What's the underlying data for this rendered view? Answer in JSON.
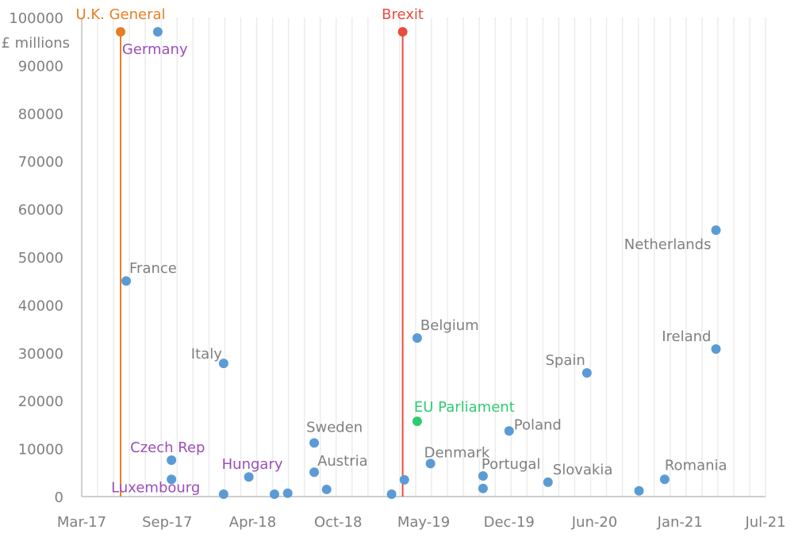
{
  "chart_data": {
    "type": "scatter",
    "title": "",
    "ylabel": "£ millions",
    "xlabel": "",
    "x_unit": "days since Mar-17",
    "xlim": [
      0,
      1600
    ],
    "ylim": [
      0,
      100000
    ],
    "yticks": [
      0,
      10000,
      20000,
      30000,
      40000,
      50000,
      60000,
      70000,
      80000,
      90000,
      100000
    ],
    "xticks": [
      {
        "value": 0,
        "label": "Mar-17"
      },
      {
        "value": 200,
        "label": "Sep-17"
      },
      {
        "value": 400,
        "label": "Apr-18"
      },
      {
        "value": 600,
        "label": "Oct-18"
      },
      {
        "value": 800,
        "label": "May-19"
      },
      {
        "value": 1000,
        "label": "Dec-19"
      },
      {
        "value": 1200,
        "label": "Jun-20"
      },
      {
        "value": 1400,
        "label": "Jan-21"
      },
      {
        "value": 1600,
        "label": "Jul-21"
      }
    ],
    "grid": "vertical monthly",
    "colors": {
      "point": "#5b9bd5",
      "label": "#7f7f7f",
      "highlight_label": "#9b4fb5",
      "eu_parliament": "#2ecc71",
      "uk_general": "#e67e22",
      "brexit": "#e74c3c"
    },
    "events": [
      {
        "label": "U.K. General",
        "x": 91,
        "y": 97000,
        "color": "#e67e22"
      },
      {
        "label": "Brexit",
        "x": 751,
        "y": 97000,
        "color": "#e74c3c"
      }
    ],
    "points": [
      {
        "label": "Germany",
        "x": 178,
        "y": 97000,
        "label_color": "#9b4fb5"
      },
      {
        "label": "France",
        "x": 104,
        "y": 45000
      },
      {
        "label": "Italy",
        "x": 332,
        "y": 27800
      },
      {
        "label": "Czech Rep",
        "x": 210,
        "y": 7600,
        "label_color": "#9b4fb5"
      },
      {
        "label": "Luxembourg",
        "x": 210,
        "y": 3600,
        "label_color": "#9b4fb5"
      },
      {
        "label": "Hungary",
        "x": 391,
        "y": 4100,
        "label_color": "#9b4fb5"
      },
      {
        "label": "",
        "x": 332,
        "y": 500
      },
      {
        "label": "",
        "x": 451,
        "y": 500
      },
      {
        "label": "",
        "x": 482,
        "y": 700
      },
      {
        "label": "Sweden",
        "x": 544,
        "y": 11200
      },
      {
        "label": "Austria",
        "x": 544,
        "y": 5100
      },
      {
        "label": "",
        "x": 573,
        "y": 1500
      },
      {
        "label": "",
        "x": 725,
        "y": 500
      },
      {
        "label": "",
        "x": 755,
        "y": 3500
      },
      {
        "label": "Belgium",
        "x": 785,
        "y": 33100
      },
      {
        "label": "EU Parliament",
        "x": 785,
        "y": 15700,
        "color": "#2ecc71",
        "label_color": "#2ecc71"
      },
      {
        "label": "Denmark",
        "x": 816,
        "y": 6900
      },
      {
        "label": "Portugal",
        "x": 939,
        "y": 4300
      },
      {
        "label": "",
        "x": 939,
        "y": 1700
      },
      {
        "label": "Poland",
        "x": 1000,
        "y": 13700
      },
      {
        "label": "Slovakia",
        "x": 1091,
        "y": 3000
      },
      {
        "label": "Spain",
        "x": 1182,
        "y": 25800
      },
      {
        "label": "",
        "x": 1304,
        "y": 1200
      },
      {
        "label": "Romania",
        "x": 1364,
        "y": 3600
      },
      {
        "label": "Netherlands",
        "x": 1484,
        "y": 55600
      },
      {
        "label": "Ireland",
        "x": 1484,
        "y": 30800
      }
    ]
  }
}
